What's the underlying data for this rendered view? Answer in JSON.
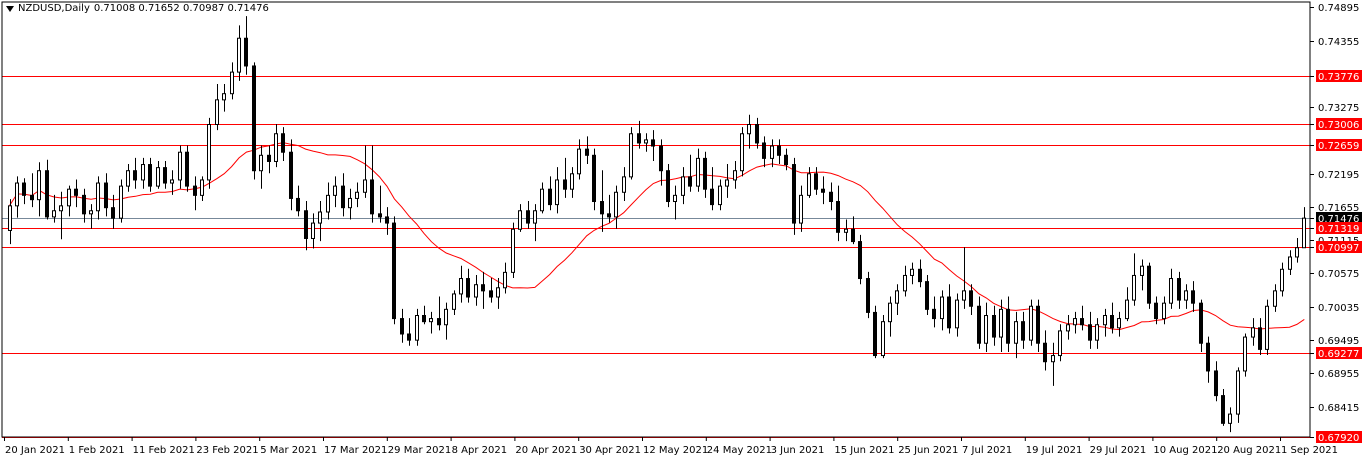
{
  "header": {
    "symbol": "NZDUSD,Daily",
    "ohlc": "0.71008 0.71652 0.70987 0.71476"
  },
  "chart_data": {
    "type": "candlestick",
    "title": "NZDUSD,Daily",
    "colors": {
      "bull_fill": "#ffffff",
      "bear_fill": "#000000",
      "wick": "#000000",
      "ma_line": "#ff0000",
      "level_line": "#ff0000",
      "current_price_line": "#778899",
      "level_label_bg": "#ff0000"
    },
    "y_range": [
      0.6792,
      0.7498
    ],
    "y_ticks": [
      "0.74895",
      "0.74355",
      "0.73776",
      "0.73275",
      "0.73006",
      "0.72659",
      "0.72195",
      "0.71655",
      "0.71476",
      "0.71319",
      "0.71115",
      "0.70997",
      "0.70575",
      "0.70035",
      "0.69495",
      "0.69277",
      "0.68955",
      "0.68415",
      "0.67920"
    ],
    "x_labels": [
      "20 Jan 2021",
      "1 Feb 2021",
      "11 Feb 2021",
      "23 Feb 2021",
      "5 Mar 2021",
      "17 Mar 2021",
      "29 Mar 2021",
      "8 Apr 2021",
      "20 Apr 2021",
      "30 Apr 2021",
      "12 May 2021",
      "24 May 2021",
      "3 Jun 2021",
      "15 Jun 2021",
      "25 Jun 2021",
      "7 Jul 2021",
      "19 Jul 2021",
      "29 Jul 2021",
      "10 Aug 2021",
      "20 Aug 2021",
      "1 Sep 2021"
    ],
    "levels": [
      0.73776,
      0.73006,
      0.72659,
      0.71319,
      0.70997,
      0.69277,
      0.6792
    ],
    "current_price": 0.71476,
    "ma_period": 20,
    "candles": [
      [
        0.7128,
        0.7178,
        0.7105,
        0.7168
      ],
      [
        0.7168,
        0.7215,
        0.7148,
        0.7205
      ],
      [
        0.7205,
        0.7212,
        0.717,
        0.7185
      ],
      [
        0.7185,
        0.722,
        0.7165,
        0.7178
      ],
      [
        0.7178,
        0.7238,
        0.715,
        0.7225
      ],
      [
        0.7225,
        0.7242,
        0.7145,
        0.715
      ],
      [
        0.715,
        0.7185,
        0.714,
        0.716
      ],
      [
        0.716,
        0.719,
        0.7113,
        0.7168
      ],
      [
        0.7168,
        0.72,
        0.715,
        0.7195
      ],
      [
        0.7195,
        0.721,
        0.7165,
        0.7185
      ],
      [
        0.7185,
        0.7195,
        0.714,
        0.7155
      ],
      [
        0.7155,
        0.717,
        0.713,
        0.716
      ],
      [
        0.716,
        0.7215,
        0.7145,
        0.7205
      ],
      [
        0.7205,
        0.722,
        0.715,
        0.7165
      ],
      [
        0.7165,
        0.7185,
        0.713,
        0.7148
      ],
      [
        0.7148,
        0.721,
        0.714,
        0.72
      ],
      [
        0.72,
        0.7235,
        0.719,
        0.7225
      ],
      [
        0.7225,
        0.7245,
        0.7195,
        0.721
      ],
      [
        0.721,
        0.7245,
        0.7195,
        0.7235
      ],
      [
        0.7235,
        0.7245,
        0.719,
        0.72
      ],
      [
        0.72,
        0.724,
        0.7195,
        0.723
      ],
      [
        0.723,
        0.724,
        0.7195,
        0.7205
      ],
      [
        0.7205,
        0.7225,
        0.7185,
        0.721
      ],
      [
        0.721,
        0.7265,
        0.7195,
        0.7255
      ],
      [
        0.7255,
        0.7265,
        0.719,
        0.72
      ],
      [
        0.72,
        0.7215,
        0.716,
        0.7185
      ],
      [
        0.7185,
        0.7215,
        0.7175,
        0.721
      ],
      [
        0.721,
        0.731,
        0.7195,
        0.73
      ],
      [
        0.73,
        0.7365,
        0.729,
        0.734
      ],
      [
        0.734,
        0.7365,
        0.732,
        0.735
      ],
      [
        0.735,
        0.74,
        0.734,
        0.7385
      ],
      [
        0.7385,
        0.746,
        0.737,
        0.744
      ],
      [
        0.744,
        0.7475,
        0.738,
        0.7395
      ],
      [
        0.7395,
        0.74,
        0.721,
        0.7225
      ],
      [
        0.7225,
        0.7265,
        0.7195,
        0.725
      ],
      [
        0.725,
        0.7265,
        0.722,
        0.724
      ],
      [
        0.724,
        0.73,
        0.723,
        0.7285
      ],
      [
        0.7285,
        0.7295,
        0.724,
        0.7255
      ],
      [
        0.7255,
        0.7275,
        0.716,
        0.718
      ],
      [
        0.718,
        0.72,
        0.715,
        0.716
      ],
      [
        0.716,
        0.7175,
        0.7095,
        0.7115
      ],
      [
        0.7115,
        0.7155,
        0.7098,
        0.714
      ],
      [
        0.714,
        0.7175,
        0.711,
        0.7158
      ],
      [
        0.7158,
        0.7205,
        0.7145,
        0.7185
      ],
      [
        0.7185,
        0.7215,
        0.7165,
        0.72
      ],
      [
        0.72,
        0.722,
        0.715,
        0.7165
      ],
      [
        0.7165,
        0.7195,
        0.7145,
        0.718
      ],
      [
        0.718,
        0.7205,
        0.7165,
        0.719
      ],
      [
        0.719,
        0.7265,
        0.718,
        0.721
      ],
      [
        0.721,
        0.7265,
        0.714,
        0.7155
      ],
      [
        0.7155,
        0.72,
        0.714,
        0.715
      ],
      [
        0.715,
        0.7165,
        0.712,
        0.714
      ],
      [
        0.714,
        0.715,
        0.6975,
        0.6985
      ],
      [
        0.6985,
        0.7,
        0.6945,
        0.696
      ],
      [
        0.696,
        0.6985,
        0.694,
        0.695
      ],
      [
        0.695,
        0.7,
        0.694,
        0.699
      ],
      [
        0.699,
        0.7005,
        0.6975,
        0.698
      ],
      [
        0.698,
        0.6995,
        0.696,
        0.6985
      ],
      [
        0.6985,
        0.702,
        0.6965,
        0.6975
      ],
      [
        0.6975,
        0.701,
        0.695,
        0.7
      ],
      [
        0.7,
        0.703,
        0.699,
        0.7025
      ],
      [
        0.7025,
        0.707,
        0.701,
        0.705
      ],
      [
        0.705,
        0.7065,
        0.701,
        0.702
      ],
      [
        0.702,
        0.7055,
        0.7005,
        0.704
      ],
      [
        0.704,
        0.706,
        0.7,
        0.703
      ],
      [
        0.703,
        0.705,
        0.701,
        0.702
      ],
      [
        0.702,
        0.705,
        0.7,
        0.7035
      ],
      [
        0.7035,
        0.7075,
        0.7025,
        0.706
      ],
      [
        0.706,
        0.714,
        0.705,
        0.713
      ],
      [
        0.713,
        0.717,
        0.7125,
        0.716
      ],
      [
        0.716,
        0.7175,
        0.713,
        0.714
      ],
      [
        0.714,
        0.717,
        0.711,
        0.716
      ],
      [
        0.716,
        0.7205,
        0.7155,
        0.7195
      ],
      [
        0.7195,
        0.7215,
        0.716,
        0.717
      ],
      [
        0.717,
        0.723,
        0.7155,
        0.721
      ],
      [
        0.721,
        0.7245,
        0.718,
        0.7195
      ],
      [
        0.7195,
        0.723,
        0.718,
        0.722
      ],
      [
        0.722,
        0.7275,
        0.721,
        0.726
      ],
      [
        0.726,
        0.728,
        0.7235,
        0.725
      ],
      [
        0.725,
        0.726,
        0.716,
        0.7175
      ],
      [
        0.7175,
        0.7225,
        0.7125,
        0.7155
      ],
      [
        0.7155,
        0.7185,
        0.714,
        0.715
      ],
      [
        0.715,
        0.72,
        0.713,
        0.719
      ],
      [
        0.719,
        0.723,
        0.7175,
        0.7215
      ],
      [
        0.7215,
        0.7295,
        0.721,
        0.7285
      ],
      [
        0.7285,
        0.7305,
        0.726,
        0.727
      ],
      [
        0.727,
        0.7285,
        0.7255,
        0.7275
      ],
      [
        0.7275,
        0.729,
        0.724,
        0.7265
      ],
      [
        0.7265,
        0.7275,
        0.72,
        0.7225
      ],
      [
        0.7225,
        0.7235,
        0.7165,
        0.7175
      ],
      [
        0.7175,
        0.72,
        0.7145,
        0.7185
      ],
      [
        0.7185,
        0.723,
        0.717,
        0.7215
      ],
      [
        0.7215,
        0.725,
        0.719,
        0.72
      ],
      [
        0.72,
        0.726,
        0.719,
        0.7245
      ],
      [
        0.7245,
        0.7255,
        0.718,
        0.7195
      ],
      [
        0.7195,
        0.723,
        0.716,
        0.717
      ],
      [
        0.717,
        0.721,
        0.716,
        0.72
      ],
      [
        0.72,
        0.7235,
        0.718,
        0.721
      ],
      [
        0.721,
        0.724,
        0.7195,
        0.7225
      ],
      [
        0.7225,
        0.7295,
        0.7215,
        0.7285
      ],
      [
        0.7285,
        0.7315,
        0.726,
        0.73
      ],
      [
        0.73,
        0.731,
        0.726,
        0.727
      ],
      [
        0.727,
        0.728,
        0.723,
        0.7245
      ],
      [
        0.7245,
        0.7275,
        0.723,
        0.7265
      ],
      [
        0.7265,
        0.7275,
        0.7235,
        0.725
      ],
      [
        0.725,
        0.726,
        0.7225,
        0.7235
      ],
      [
        0.7235,
        0.7245,
        0.712,
        0.714
      ],
      [
        0.714,
        0.72,
        0.7125,
        0.7185
      ],
      [
        0.7185,
        0.723,
        0.718,
        0.722
      ],
      [
        0.722,
        0.723,
        0.7185,
        0.7195
      ],
      [
        0.7195,
        0.7215,
        0.717,
        0.719
      ],
      [
        0.719,
        0.7205,
        0.716,
        0.7175
      ],
      [
        0.7175,
        0.72,
        0.711,
        0.7125
      ],
      [
        0.7125,
        0.7145,
        0.711,
        0.713
      ],
      [
        0.713,
        0.715,
        0.7105,
        0.711
      ],
      [
        0.711,
        0.712,
        0.704,
        0.705
      ],
      [
        0.705,
        0.706,
        0.6985,
        0.6995
      ],
      [
        0.6995,
        0.7005,
        0.692,
        0.6925
      ],
      [
        0.6925,
        0.699,
        0.692,
        0.698
      ],
      [
        0.698,
        0.702,
        0.6955,
        0.701
      ],
      [
        0.701,
        0.704,
        0.699,
        0.703
      ],
      [
        0.703,
        0.707,
        0.702,
        0.7055
      ],
      [
        0.7055,
        0.7075,
        0.704,
        0.7065
      ],
      [
        0.7065,
        0.708,
        0.7035,
        0.7045
      ],
      [
        0.7045,
        0.7055,
        0.699,
        0.7
      ],
      [
        0.7,
        0.702,
        0.697,
        0.6985
      ],
      [
        0.6985,
        0.703,
        0.6965,
        0.702
      ],
      [
        0.702,
        0.704,
        0.696,
        0.697
      ],
      [
        0.697,
        0.7025,
        0.6955,
        0.7015
      ],
      [
        0.7015,
        0.71,
        0.7,
        0.703
      ],
      [
        0.703,
        0.704,
        0.699,
        0.7005
      ],
      [
        0.7005,
        0.702,
        0.6935,
        0.6945
      ],
      [
        0.6945,
        0.701,
        0.693,
        0.699
      ],
      [
        0.699,
        0.7005,
        0.694,
        0.6955
      ],
      [
        0.6955,
        0.7015,
        0.693,
        0.7
      ],
      [
        0.7,
        0.702,
        0.693,
        0.6945
      ],
      [
        0.6945,
        0.6995,
        0.692,
        0.698
      ],
      [
        0.698,
        0.6995,
        0.6935,
        0.695
      ],
      [
        0.695,
        0.7015,
        0.694,
        0.7005
      ],
      [
        0.7005,
        0.7015,
        0.693,
        0.6945
      ],
      [
        0.6945,
        0.6965,
        0.69,
        0.6915
      ],
      [
        0.6915,
        0.6945,
        0.6875,
        0.6925
      ],
      [
        0.6925,
        0.6975,
        0.6915,
        0.6965
      ],
      [
        0.6965,
        0.699,
        0.695,
        0.6975
      ],
      [
        0.6975,
        0.6995,
        0.696,
        0.6985
      ],
      [
        0.6985,
        0.7005,
        0.6965,
        0.6975
      ],
      [
        0.6975,
        0.6995,
        0.6935,
        0.695
      ],
      [
        0.695,
        0.6985,
        0.6935,
        0.6975
      ],
      [
        0.6975,
        0.7,
        0.6955,
        0.699
      ],
      [
        0.699,
        0.701,
        0.696,
        0.697
      ],
      [
        0.697,
        0.6995,
        0.6955,
        0.6985
      ],
      [
        0.6985,
        0.7035,
        0.698,
        0.7015
      ],
      [
        0.7015,
        0.709,
        0.7005,
        0.7055
      ],
      [
        0.7055,
        0.708,
        0.703,
        0.707
      ],
      [
        0.707,
        0.7075,
        0.7,
        0.701
      ],
      [
        0.701,
        0.702,
        0.6975,
        0.6985
      ],
      [
        0.6985,
        0.702,
        0.6975,
        0.701
      ],
      [
        0.701,
        0.7065,
        0.7,
        0.705
      ],
      [
        0.705,
        0.706,
        0.7,
        0.7015
      ],
      [
        0.7015,
        0.704,
        0.7,
        0.703
      ],
      [
        0.703,
        0.7045,
        0.6995,
        0.701
      ],
      [
        0.701,
        0.7015,
        0.693,
        0.6945
      ],
      [
        0.6945,
        0.6955,
        0.688,
        0.69
      ],
      [
        0.69,
        0.6915,
        0.685,
        0.686
      ],
      [
        0.686,
        0.687,
        0.681,
        0.6815
      ],
      [
        0.6815,
        0.684,
        0.68,
        0.683
      ],
      [
        0.683,
        0.6905,
        0.6815,
        0.69
      ],
      [
        0.69,
        0.696,
        0.689,
        0.6955
      ],
      [
        0.6955,
        0.6985,
        0.694,
        0.697
      ],
      [
        0.697,
        0.6985,
        0.6925,
        0.6935
      ],
      [
        0.6935,
        0.7015,
        0.6925,
        0.7005
      ],
      [
        0.7005,
        0.704,
        0.6995,
        0.703
      ],
      [
        0.703,
        0.7075,
        0.702,
        0.7065
      ],
      [
        0.7065,
        0.7095,
        0.7055,
        0.7085
      ],
      [
        0.7085,
        0.7115,
        0.7075,
        0.71
      ],
      [
        0.71,
        0.7165,
        0.7099,
        0.7148
      ]
    ]
  }
}
